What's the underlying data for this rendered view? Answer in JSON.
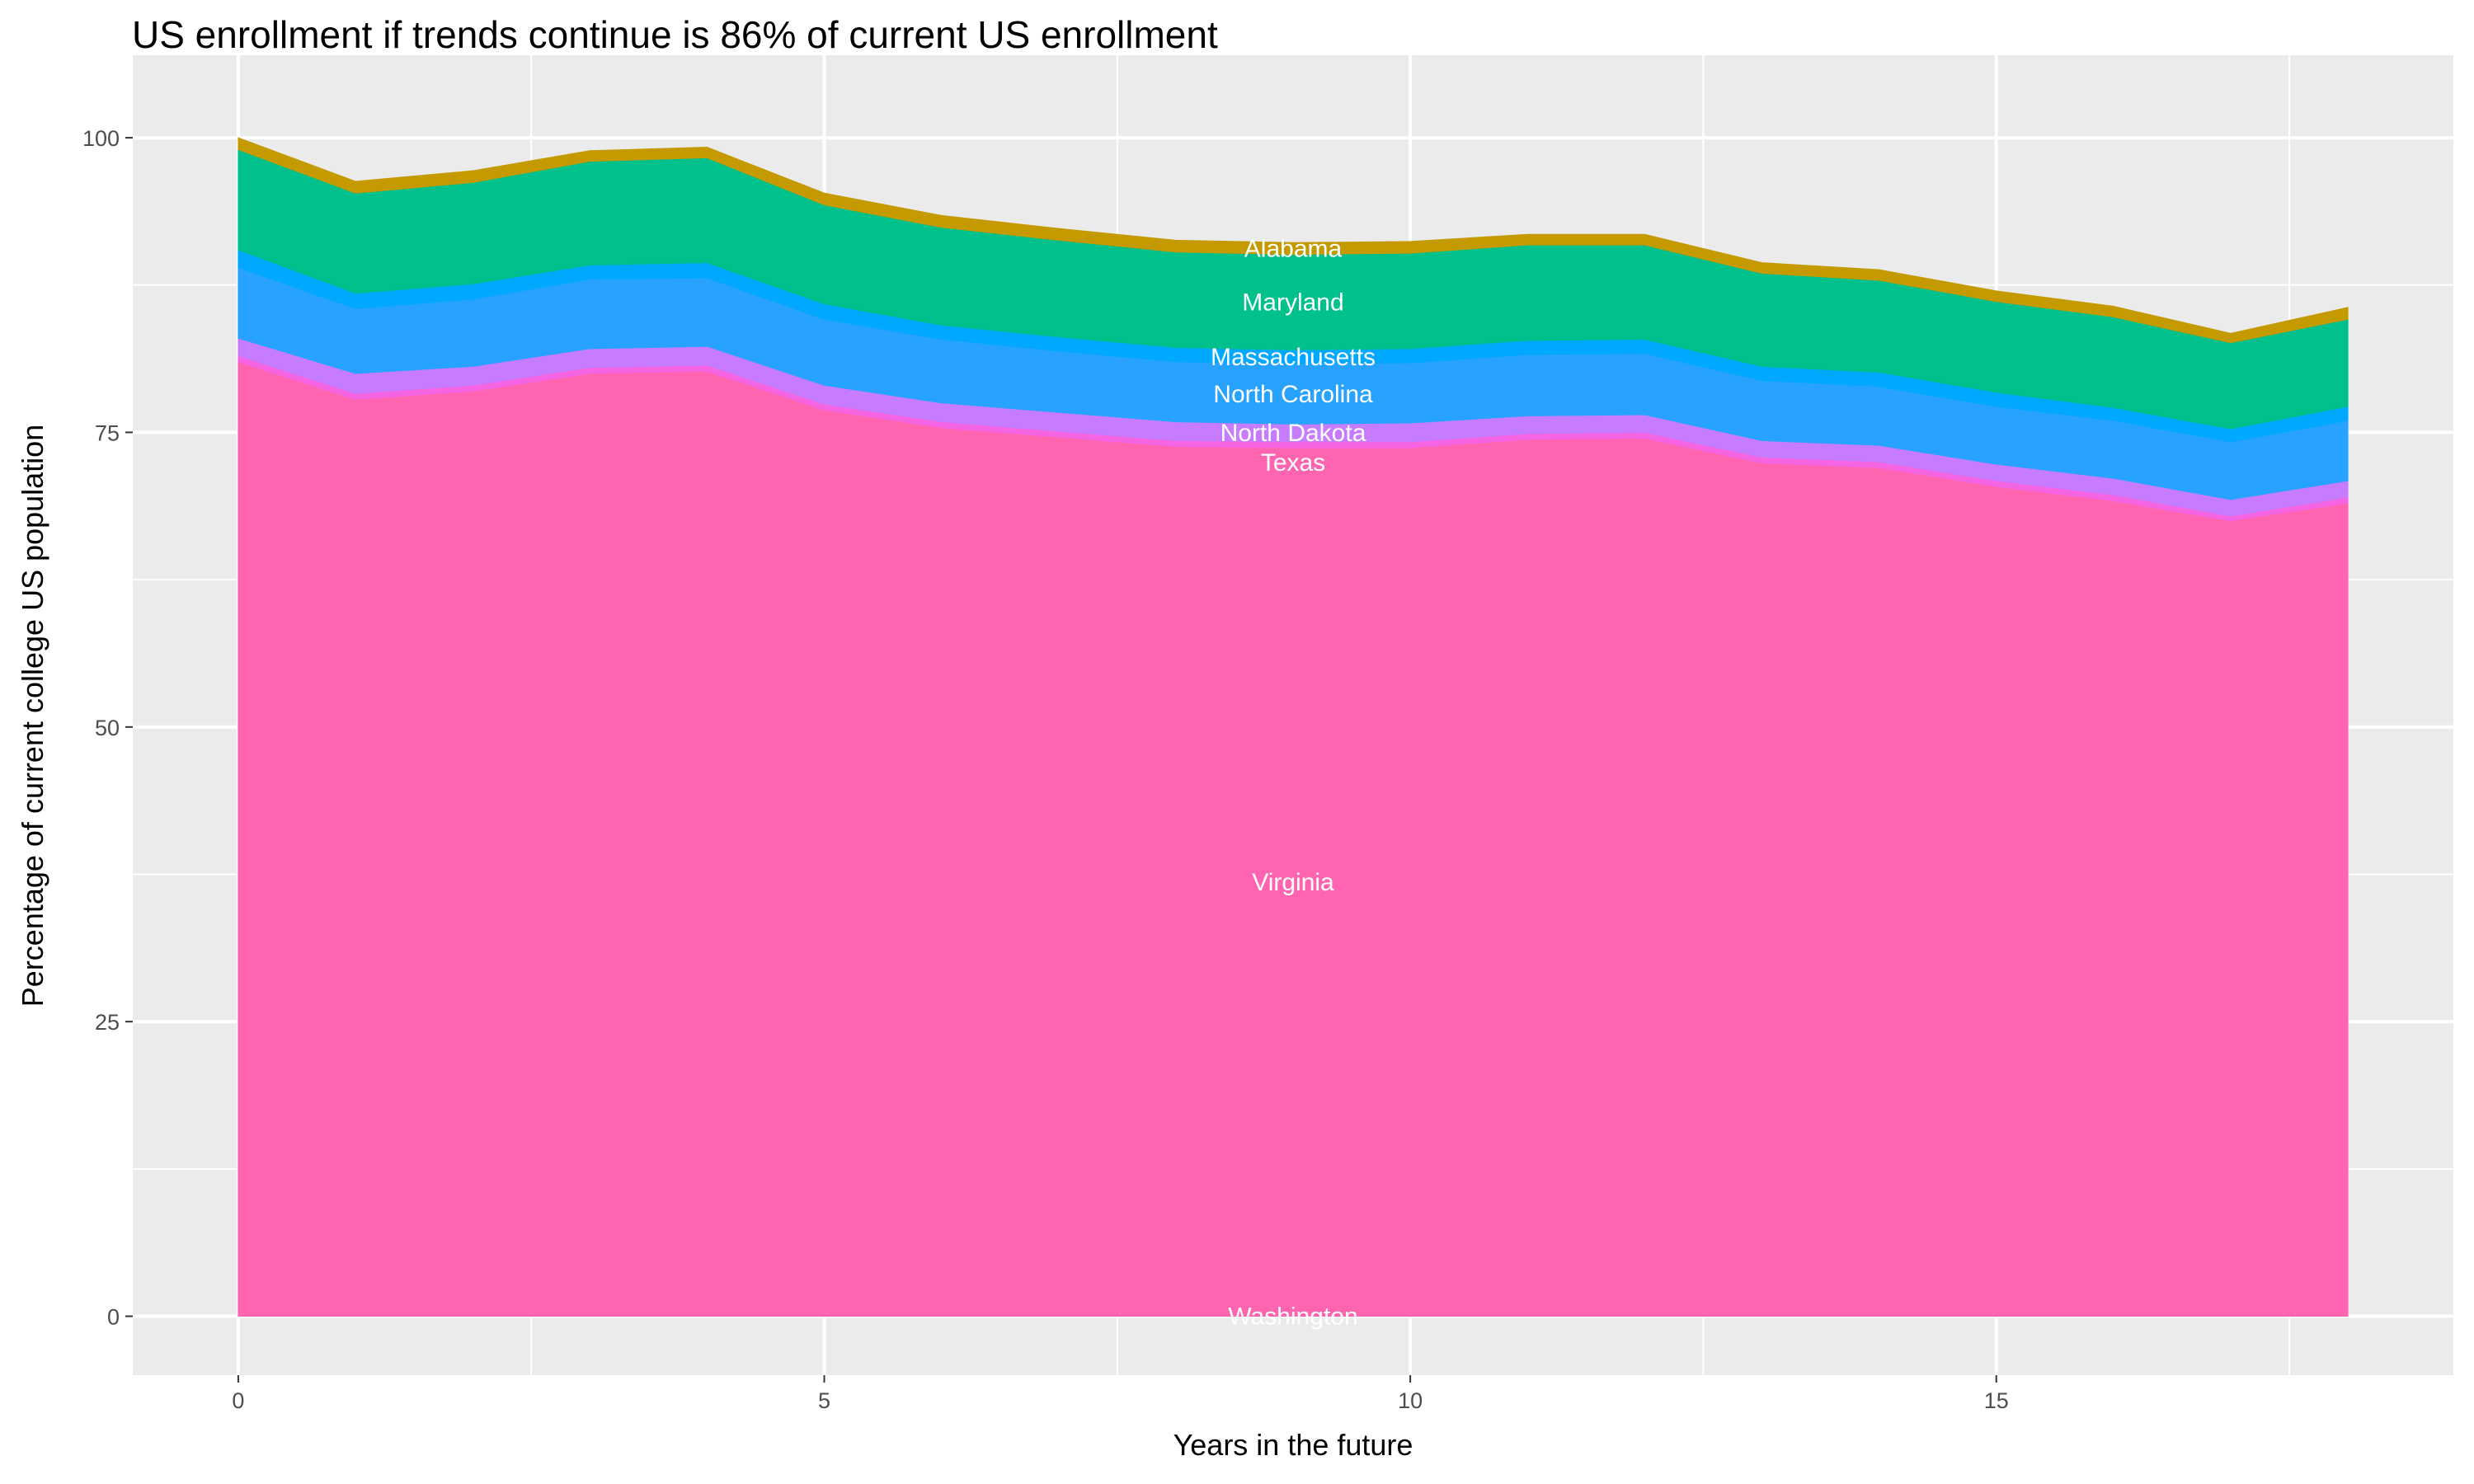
{
  "chart_data": {
    "type": "area",
    "stacked": true,
    "title": "US enrollment if trends continue is 86% of current US enrollment",
    "xlabel": "Years in the future",
    "ylabel": "Percentage of current college US population",
    "xlim": [
      -0.9,
      18.9
    ],
    "ylim": [
      -5,
      107
    ],
    "x_ticks": [
      0,
      5,
      10,
      15
    ],
    "y_ticks": [
      0,
      25,
      50,
      75,
      100
    ],
    "grid": true,
    "legend": "none (direct labels at x=9)",
    "label_x": 9,
    "x": [
      0,
      1,
      2,
      3,
      4,
      5,
      6,
      7,
      8,
      9,
      10,
      11,
      12,
      13,
      14,
      15,
      16,
      17,
      18
    ],
    "series": [
      {
        "name": "Washington",
        "color": "#FF61C3",
        "values": [
          0,
          0,
          0,
          0,
          0,
          0,
          0,
          0,
          0,
          0,
          0,
          0,
          0,
          0,
          0,
          0,
          0,
          0,
          0
        ]
      },
      {
        "name": "Virginia",
        "color": "#FF64B0",
        "values": [
          81,
          77.8,
          78.5,
          80,
          80.2,
          76.9,
          75.4,
          74.6,
          73.8,
          73.7,
          73.7,
          74.4,
          74.5,
          72.4,
          72,
          70.4,
          69.2,
          67.5,
          69
        ]
      },
      {
        "name": "Texas",
        "color": "#F564E3",
        "values": [
          0.5,
          0.5,
          0.5,
          0.5,
          0.5,
          0.5,
          0.5,
          0.5,
          0.5,
          0.5,
          0.5,
          0.5,
          0.5,
          0.5,
          0.5,
          0.5,
          0.5,
          0.4,
          0.5
        ]
      },
      {
        "name": "North Dakota",
        "color": "#C77CFF",
        "values": [
          1.5,
          1.7,
          1.6,
          1.6,
          1.6,
          1.6,
          1.6,
          1.6,
          1.6,
          1.5,
          1.6,
          1.5,
          1.5,
          1.4,
          1.4,
          1.4,
          1.4,
          1.4,
          1.4
        ]
      },
      {
        "name": "North Carolina",
        "color": "#28A2FF",
        "values": [
          6,
          5.5,
          5.7,
          5.9,
          5.8,
          5.6,
          5.4,
          5.2,
          5.1,
          5.1,
          5.1,
          5.2,
          5.2,
          5.1,
          5,
          4.9,
          4.9,
          4.9,
          5.1
        ]
      },
      {
        "name": "Massachusetts",
        "color": "#00A9FF",
        "values": [
          1.5,
          1.3,
          1.3,
          1.2,
          1.3,
          1.3,
          1.2,
          1.2,
          1.2,
          1.2,
          1.2,
          1.2,
          1.2,
          1.2,
          1.2,
          1.2,
          1.1,
          1.1,
          1.2
        ]
      },
      {
        "name": "Maryland",
        "color": "#00C08B",
        "values": [
          8.5,
          8.5,
          8.6,
          8.8,
          8.9,
          8.4,
          8.3,
          8.2,
          8.1,
          8.1,
          8.1,
          8.1,
          8,
          7.9,
          7.8,
          7.7,
          7.7,
          7.3,
          7.4
        ]
      },
      {
        "name": "Alabama",
        "color": "#C49A00",
        "values": [
          1,
          1,
          1,
          0.9,
          0.9,
          1,
          1,
          1,
          1,
          1,
          1,
          0.9,
          0.9,
          0.9,
          0.9,
          0.9,
          0.9,
          0.8,
          1
        ]
      }
    ]
  },
  "colors": {
    "panel_bg": "#EBEBEB",
    "grid": "#FFFFFF",
    "label": "#FFFFFF"
  }
}
